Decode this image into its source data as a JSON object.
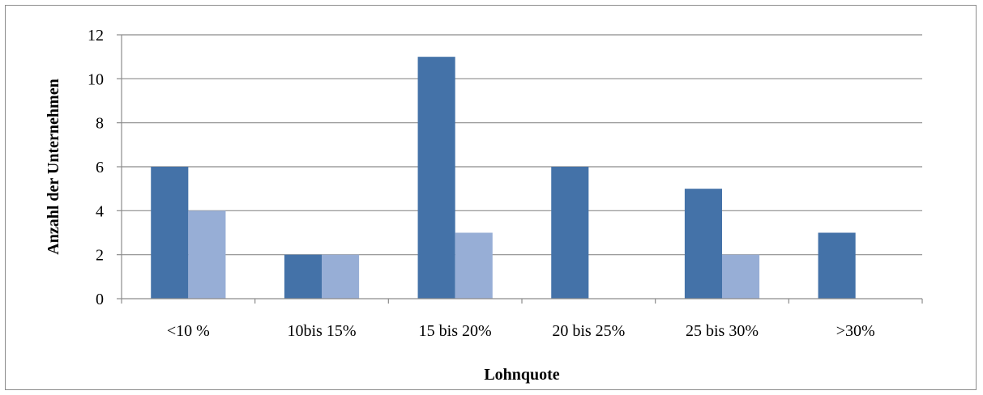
{
  "chart_data": {
    "type": "bar",
    "title": "",
    "xlabel": "Lohnquote",
    "ylabel": "Anzahl der Unternehmen",
    "categories": [
      "<10 %",
      "10bis 15%",
      "15 bis 20%",
      "20 bis 25%",
      "25 bis 30%",
      ">30%"
    ],
    "series": [
      {
        "values": [
          6,
          2,
          11,
          6,
          5,
          3
        ],
        "color": "#4472a8"
      },
      {
        "values": [
          4,
          2,
          3,
          0,
          2,
          0
        ],
        "color": "#97aed6"
      }
    ],
    "ylim": [
      0,
      12
    ],
    "yticks": [
      "0",
      "2",
      "4",
      "6",
      "8",
      "10",
      "12"
    ],
    "grid": true,
    "legend": "none",
    "gridline_color": "#8c8c8c"
  }
}
